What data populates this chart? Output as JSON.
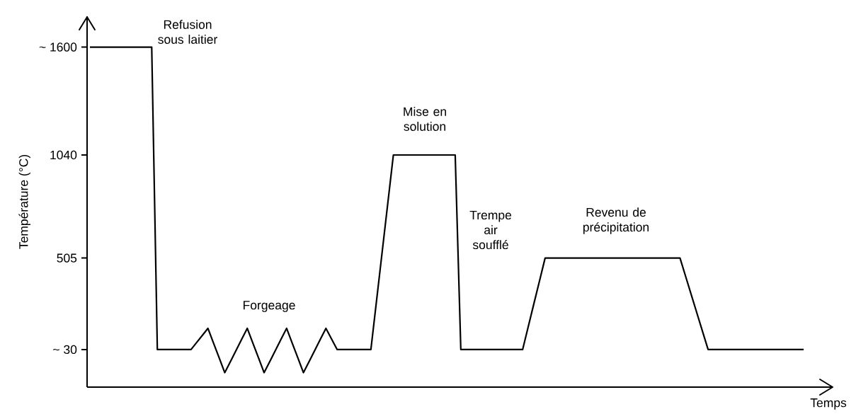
{
  "chart_data": {
    "type": "line",
    "ylabel": "Température (°C)",
    "xlabel": "Temps",
    "categories": [
      null,
      null,
      null,
      null,
      null,
      null,
      null,
      null,
      null,
      null,
      null,
      null,
      null,
      null,
      null,
      null,
      null,
      null,
      null,
      null,
      null,
      null,
      null,
      null,
      null,
      null,
      null,
      null,
      null,
      null,
      null,
      null,
      null,
      null,
      null,
      null,
      null,
      null,
      null,
      null,
      null,
      null,
      null,
      null,
      null,
      null,
      null,
      null,
      null,
      null,
      null,
      null,
      null,
      null,
      null,
      null,
      null,
      null,
      null,
      null,
      null,
      null,
      null,
      null,
      null,
      null,
      null,
      null,
      null,
      null,
      null,
      null,
      null,
      null,
      null,
      null,
      null,
      null,
      null,
      null,
      null,
      null,
      null,
      null,
      null,
      null,
      null,
      null,
      null,
      null,
      null,
      null,
      null,
      null,
      null,
      null,
      null,
      null,
      null,
      null,
      null,
      null,
      null,
      null,
      null,
      null,
      null,
      null,
      null,
      null,
      null,
      null,
      null,
      null,
      null,
      null,
      null,
      null,
      null,
      null,
      null,
      null,
      null,
      null,
      null,
      null,
      null,
      null
    ],
    "values": [
      1600,
      1600,
      1600,
      1600,
      1600,
      1600,
      1600,
      1600,
      1600,
      1600,
      1600,
      1600,
      30,
      30,
      30,
      30,
      30,
      30,
      30,
      67,
      103,
      140,
      63,
      -13,
      -90,
      -33,
      25,
      83,
      140,
      63,
      -13,
      -90,
      -33,
      25,
      83,
      140,
      63,
      -13,
      -90,
      -33,
      25,
      83,
      140,
      85,
      30,
      30,
      30,
      30,
      30,
      30,
      30,
      283,
      535,
      788,
      1040,
      1040,
      1040,
      1040,
      1040,
      1040,
      1040,
      1040,
      1040,
      1040,
      1040,
      1040,
      30,
      30,
      30,
      30,
      30,
      30,
      30,
      30,
      30,
      30,
      30,
      30,
      149,
      268,
      386,
      505,
      505,
      505,
      505,
      505,
      505,
      505,
      505,
      505,
      505,
      505,
      505,
      505,
      505,
      505,
      505,
      505,
      505,
      505,
      505,
      505,
      505,
      505,
      505,
      505,
      410,
      315,
      220,
      125,
      30,
      30,
      30,
      30,
      30,
      30,
      30,
      30,
      30,
      30,
      30,
      30,
      30,
      30,
      30,
      30,
      30,
      30
    ],
    "color": "#000000",
    "marker": "none",
    "ylim": [
      -165,
      1760
    ],
    "yticks": [
      {
        "value": 30,
        "label": "~ 30"
      },
      {
        "value": 505,
        "label": "505"
      },
      {
        "value": 1040,
        "label": "1040"
      },
      {
        "value": 1600,
        "label": "~ 1600"
      }
    ],
    "tick_labels": "y",
    "annotations": [
      "Refusion sous laitier",
      "Forgeage",
      "Mise en solution",
      "Trempe air soufflé",
      "Revenu de précipitation"
    ]
  }
}
